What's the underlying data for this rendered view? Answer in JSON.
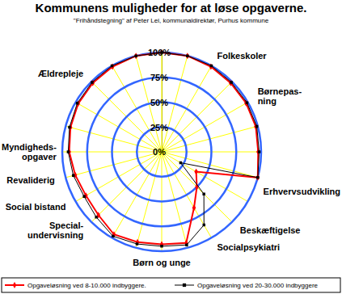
{
  "chart_data": {
    "type": "radar",
    "title": "Kommunens muligheder for at løse opgaverne.",
    "subtitle": "\"Frihåndstegning\"  af Peter Lei, kommunaldirektør, Purhus kommune",
    "categories": [
      null,
      null,
      "Folkeskoler",
      null,
      "Børnepas-\nning",
      null,
      null,
      "Erhvervsudvikling",
      null,
      "Beskæftigelse",
      "Socialpsykiatri",
      null,
      "Børn og unge",
      null,
      null,
      "Special-\nundervisning",
      "Social bistand",
      "Revaliderig",
      "Myndigheds-\nopgaver",
      null,
      null,
      "Ældrepleje",
      null,
      null
    ],
    "series": [
      {
        "name": "Opgaveløsning ved 8-10.000 indbyggere.",
        "color": "#ff0000",
        "marker": "diamond",
        "values": [
          100,
          100,
          99,
          98,
          98,
          98,
          97,
          100,
          40,
          50,
          65,
          95,
          93,
          94,
          96,
          90,
          88,
          90,
          93,
          95,
          97,
          98,
          99,
          100
        ]
      },
      {
        "name": "Opgaveløsning ved 20-30.000 indbyggere",
        "color": "#000000",
        "marker": "square",
        "values": [
          100,
          100,
          100,
          99,
          99,
          99,
          98,
          100,
          22,
          60,
          85,
          97,
          95,
          96,
          98,
          93,
          90,
          92,
          94,
          96,
          98,
          99,
          100,
          100
        ]
      }
    ],
    "ylim": [
      0,
      100
    ],
    "yticks": [
      {
        "value": 0,
        "label": "0%"
      },
      {
        "value": 25,
        "label": "25%"
      },
      {
        "value": 50,
        "label": "50%"
      },
      {
        "value": 75,
        "label": "75%"
      },
      {
        "value": 100,
        "label": "100%"
      }
    ],
    "grid": true,
    "legend": "bottom",
    "tick_labels": "y"
  }
}
